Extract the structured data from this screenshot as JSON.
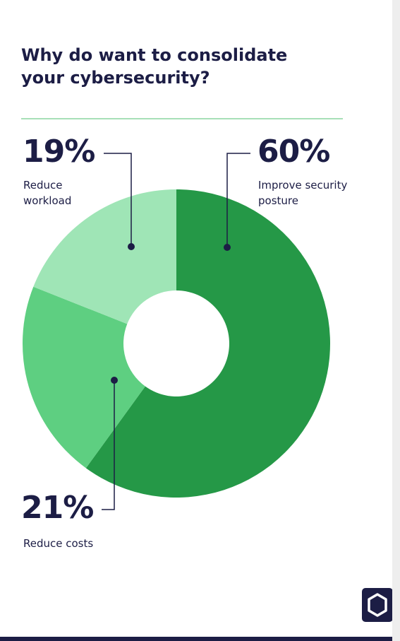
{
  "title": "Why do want to consolidate your cybersecurity?",
  "logo_icon": "hexagon-logo-icon",
  "colors": {
    "navy": "#1c1d45",
    "improve": "#259847",
    "costs": "#5ecf81",
    "workload": "#9fe5b6"
  },
  "chart_data": {
    "type": "pie",
    "title": "Why do want to consolidate your cybersecurity?",
    "donut": true,
    "slices": [
      {
        "label": "Improve security posture",
        "value": 60,
        "value_label": "60%",
        "label_lines": [
          "Improve security",
          "posture"
        ],
        "color": "#259847"
      },
      {
        "label": "Reduce costs",
        "value": 21,
        "value_label": "21%",
        "label_lines": [
          "Reduce costs"
        ],
        "color": "#5ecf81"
      },
      {
        "label": "Reduce workload",
        "value": 19,
        "value_label": "19%",
        "label_lines": [
          "Reduce",
          "workload"
        ],
        "color": "#9fe5b6"
      }
    ]
  }
}
